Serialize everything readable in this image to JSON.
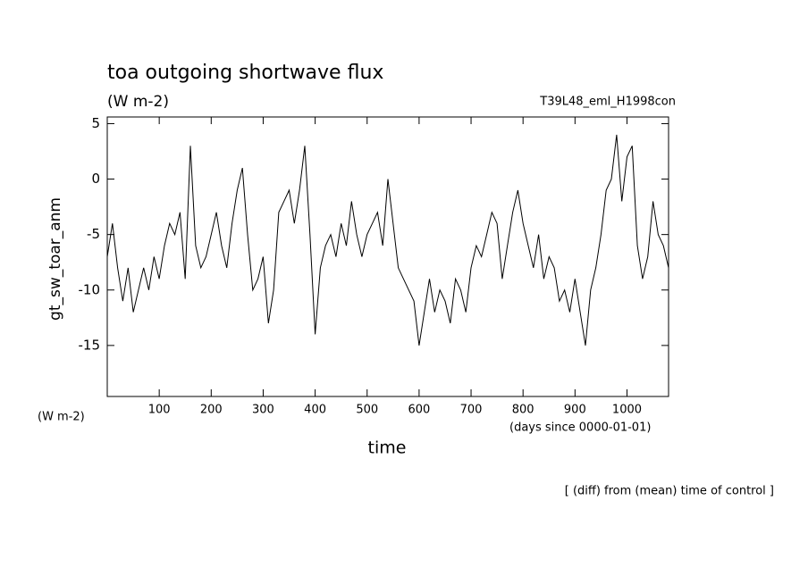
{
  "chart_data": {
    "type": "line",
    "title": "toa outgoing shortwave flux",
    "subtitle": "(W m-2)",
    "annotation": "T39L48_eml_H1998con",
    "y_label": "gt_sw_toar_anm",
    "y_unit": "(W m-2)",
    "x_unit": "(days since 0000-01-01)",
    "x_label": "time",
    "footnote": "[ (diff) from (mean) time of control ]",
    "color": "#000000",
    "xlim": [
      0,
      1080
    ],
    "xticks": [
      100,
      200,
      300,
      400,
      500,
      600,
      700,
      800,
      900,
      1000
    ],
    "ylim": [
      -19.6,
      5.6
    ],
    "yticks": [
      5,
      0,
      -5,
      -10,
      -15
    ],
    "x": [
      0,
      10,
      20,
      30,
      40,
      50,
      60,
      70,
      80,
      90,
      100,
      110,
      120,
      130,
      140,
      150,
      160,
      170,
      180,
      190,
      200,
      210,
      220,
      230,
      240,
      250,
      260,
      270,
      280,
      290,
      300,
      310,
      320,
      330,
      340,
      350,
      360,
      370,
      380,
      390,
      400,
      410,
      420,
      430,
      440,
      450,
      460,
      470,
      480,
      490,
      500,
      510,
      520,
      530,
      540,
      550,
      560,
      570,
      580,
      590,
      600,
      610,
      620,
      630,
      640,
      650,
      660,
      670,
      680,
      690,
      700,
      710,
      720,
      730,
      740,
      750,
      760,
      770,
      780,
      790,
      800,
      810,
      820,
      830,
      840,
      850,
      860,
      870,
      880,
      890,
      900,
      910,
      920,
      930,
      940,
      950,
      960,
      970,
      980,
      990,
      1000,
      1010,
      1020,
      1030,
      1040,
      1050,
      1060,
      1070,
      1080
    ],
    "values": [
      -7,
      -4,
      -8,
      -11,
      -8,
      -12,
      -10,
      -8,
      -10,
      -7,
      -9,
      -6,
      -4,
      -5,
      -3,
      -9,
      3,
      -6,
      -8,
      -7,
      -5,
      -3,
      -6,
      -8,
      -4,
      -1,
      1,
      -5,
      -10,
      -9,
      -7,
      -13,
      -10,
      -3,
      -2,
      -1,
      -4,
      -1,
      3,
      -5,
      -14,
      -8,
      -6,
      -5,
      -7,
      -4,
      -6,
      -2,
      -5,
      -7,
      -5,
      -4,
      -3,
      -6,
      0,
      -4,
      -8,
      -9,
      -10,
      -11,
      -15,
      -12,
      -9,
      -12,
      -10,
      -11,
      -13,
      -9,
      -10,
      -12,
      -8,
      -6,
      -7,
      -5,
      -3,
      -4,
      -9,
      -6,
      -3,
      -1,
      -4,
      -6,
      -8,
      -5,
      -9,
      -7,
      -8,
      -11,
      -10,
      -12,
      -9,
      -12,
      -15,
      -10,
      -8,
      -5,
      -1,
      0,
      4,
      -2,
      2,
      3,
      -6,
      -9,
      -7,
      -2,
      -5,
      -6,
      -8
    ]
  }
}
